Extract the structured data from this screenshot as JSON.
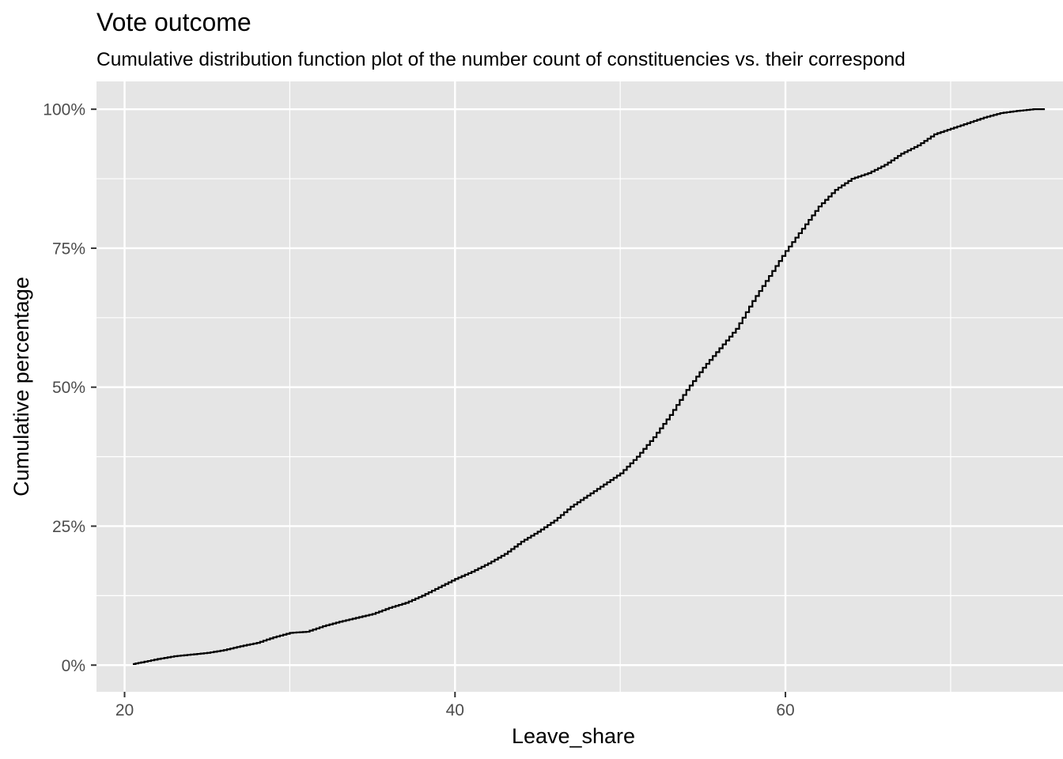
{
  "chart_data": {
    "type": "line",
    "title": "Vote outcome",
    "subtitle": "Cumulative distribution function plot of the number count of constituencies vs. their correspond",
    "xlabel": "Leave_share",
    "ylabel": "Cumulative percentage",
    "xlim": [
      18.3,
      76.8
    ],
    "ylim": [
      -0.048,
      1.05
    ],
    "x_ticks": [
      20,
      40,
      60
    ],
    "x_tick_labels": [
      "20",
      "40",
      "60"
    ],
    "y_ticks": [
      0,
      0.25,
      0.5,
      0.75,
      1.0
    ],
    "y_tick_labels": [
      "0%",
      "25%",
      "50%",
      "75%",
      "100%"
    ],
    "grid": true,
    "background": "#e5e5e5",
    "grid_color": "#ffffff",
    "line_color": "#000000",
    "series": [
      {
        "x": [
          20.5,
          21.0,
          22.0,
          23.0,
          24.0,
          25.0,
          26.0,
          27.0,
          28.0,
          29.0,
          30.0,
          31.0,
          32.0,
          33.0,
          34.0,
          35.0,
          36.0,
          37.0,
          38.0,
          39.0,
          40.0,
          41.0,
          42.0,
          43.0,
          44.0,
          45.0,
          46.0,
          47.0,
          48.0,
          49.0,
          50.0,
          51.0,
          52.0,
          53.0,
          54.0,
          55.0,
          56.0,
          57.0,
          58.0,
          59.0,
          60.0,
          61.0,
          62.0,
          63.0,
          64.0,
          65.0,
          66.0,
          67.0,
          68.0,
          69.0,
          70.0,
          71.0,
          72.0,
          73.0,
          74.0,
          75.0,
          75.7
        ],
        "y": [
          0.002,
          0.005,
          0.011,
          0.016,
          0.019,
          0.022,
          0.027,
          0.034,
          0.04,
          0.05,
          0.058,
          0.06,
          0.07,
          0.078,
          0.085,
          0.092,
          0.103,
          0.112,
          0.125,
          0.14,
          0.155,
          0.168,
          0.183,
          0.2,
          0.222,
          0.24,
          0.26,
          0.285,
          0.305,
          0.325,
          0.345,
          0.375,
          0.41,
          0.45,
          0.495,
          0.535,
          0.57,
          0.605,
          0.655,
          0.7,
          0.745,
          0.785,
          0.825,
          0.855,
          0.875,
          0.885,
          0.9,
          0.92,
          0.935,
          0.955,
          0.965,
          0.975,
          0.985,
          0.993,
          0.997,
          1.0,
          1.0
        ]
      }
    ]
  }
}
